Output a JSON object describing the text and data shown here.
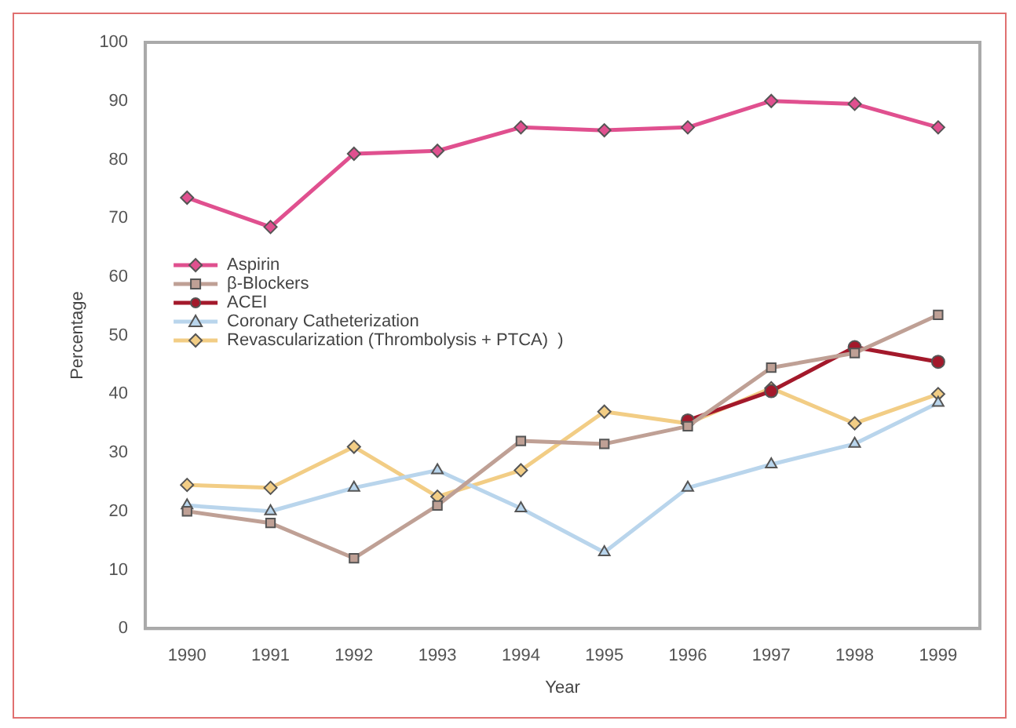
{
  "chart_data": {
    "type": "line",
    "xlabel": "Year",
    "ylabel": "Percentage",
    "categories": [
      "1990",
      "1991",
      "1992",
      "1993",
      "1994",
      "1995",
      "1996",
      "1997",
      "1998",
      "1999"
    ],
    "ylim": [
      0,
      100
    ],
    "yticks": [
      0,
      10,
      20,
      30,
      40,
      50,
      60,
      70,
      80,
      90,
      100
    ],
    "legend": "left",
    "series": [
      {
        "name": "Aspirin",
        "color": "#e0508f",
        "marker": "diamond",
        "values": [
          73.5,
          68.5,
          81,
          81.5,
          85.5,
          85,
          85.5,
          90,
          89.5,
          85.5
        ]
      },
      {
        "name": "β-Blockers",
        "color": "#bfa095",
        "marker": "square",
        "values": [
          20,
          18,
          12,
          21,
          32,
          31.5,
          34.5,
          44.5,
          47,
          53.5
        ]
      },
      {
        "name": "ACEI",
        "color": "#a3192b",
        "marker": "circle",
        "values": [
          null,
          null,
          null,
          null,
          null,
          null,
          35.5,
          40.5,
          48,
          45.5
        ]
      },
      {
        "name": "Coronary Catheterization",
        "color": "#b9d5ec",
        "marker": "triangle",
        "values": [
          21,
          20,
          24,
          27,
          20.5,
          13,
          24,
          28,
          31.5,
          38.5
        ]
      },
      {
        "name": "Revascularization (Thrombolysis + PTCA)  )",
        "color": "#f2cd85",
        "marker": "diamond",
        "values": [
          24.5,
          24,
          31,
          22.5,
          27,
          37,
          35,
          41,
          35,
          40
        ]
      }
    ]
  }
}
